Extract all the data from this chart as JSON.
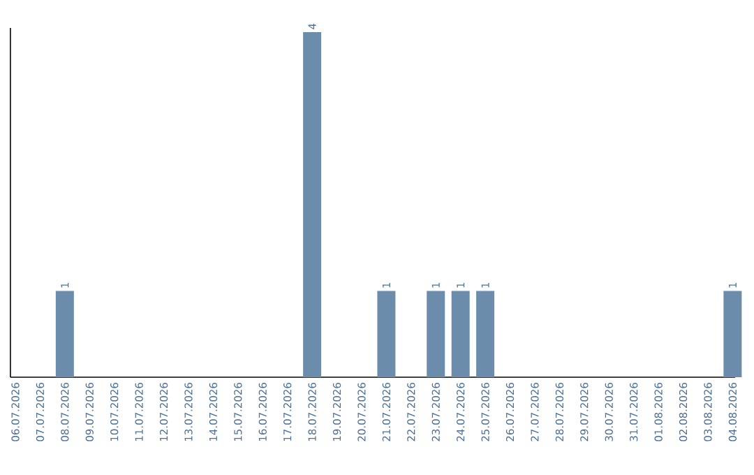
{
  "chart_data": {
    "type": "bar",
    "categories": [
      "06.07.2026",
      "07.07.2026",
      "08.07.2026",
      "09.07.2026",
      "10.07.2026",
      "11.07.2026",
      "12.07.2026",
      "13.07.2026",
      "14.07.2026",
      "15.07.2026",
      "16.07.2026",
      "17.07.2026",
      "18.07.2026",
      "19.07.2026",
      "20.07.2026",
      "21.07.2026",
      "22.07.2026",
      "23.07.2026",
      "24.07.2026",
      "25.07.2026",
      "26.07.2026",
      "27.07.2026",
      "28.07.2026",
      "29.07.2026",
      "30.07.2026",
      "31.07.2026",
      "01.08.2026",
      "02.08.2026",
      "03.08.2026",
      "04.08.2026"
    ],
    "values": [
      0,
      0,
      1,
      0,
      0,
      0,
      0,
      0,
      0,
      0,
      0,
      0,
      4,
      0,
      0,
      1,
      0,
      1,
      1,
      1,
      0,
      0,
      0,
      0,
      0,
      0,
      0,
      0,
      0,
      1
    ],
    "value_labels": [
      null,
      null,
      "1",
      null,
      null,
      null,
      null,
      null,
      null,
      null,
      null,
      null,
      "4",
      null,
      null,
      "1",
      null,
      "1",
      "1",
      "1",
      null,
      null,
      null,
      null,
      null,
      null,
      null,
      null,
      null,
      "1"
    ],
    "color": "#6b8cab",
    "tick_labels": "x"
  }
}
